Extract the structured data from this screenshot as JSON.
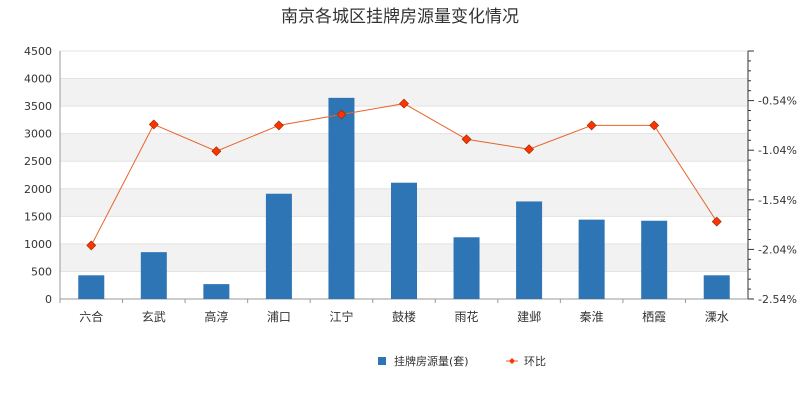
{
  "chart_data": {
    "type": "bar",
    "title": "南京各城区挂牌房源量变化情况",
    "categories": [
      "六合",
      "玄武",
      "高淳",
      "浦口",
      "江宁",
      "鼓楼",
      "雨花",
      "建邺",
      "秦淮",
      "栖霞",
      "溧水"
    ],
    "series": [
      {
        "name": "挂牌房源量(套)",
        "type": "bar",
        "axis": "left",
        "color": "#2e75b6",
        "values": [
          430,
          850,
          270,
          1910,
          3650,
          2110,
          1120,
          1770,
          1440,
          1420,
          430
        ]
      },
      {
        "name": "环比",
        "type": "line",
        "axis": "right",
        "color": "#e8632b",
        "marker_color": "#ff3300",
        "values": [
          -2.0,
          -0.78,
          -1.05,
          -0.79,
          -0.68,
          -0.57,
          -0.93,
          -1.03,
          -0.79,
          -0.79,
          -1.76
        ]
      }
    ],
    "y_left": {
      "min": 0,
      "max": 4500,
      "ticks": [
        "0",
        "500",
        "1000",
        "1500",
        "2000",
        "2500",
        "3000",
        "3500",
        "4000",
        "4500"
      ]
    },
    "y_right": {
      "min": -2.54,
      "max": -0.04,
      "ticks": [
        "-2.54%",
        "-2.04%",
        "-1.54%",
        "-1.04%",
        "-0.54%"
      ]
    },
    "grid": true,
    "grid_bands": [
      "#f2f2f2",
      "#ffffff"
    ],
    "legend_position": "bottom"
  }
}
